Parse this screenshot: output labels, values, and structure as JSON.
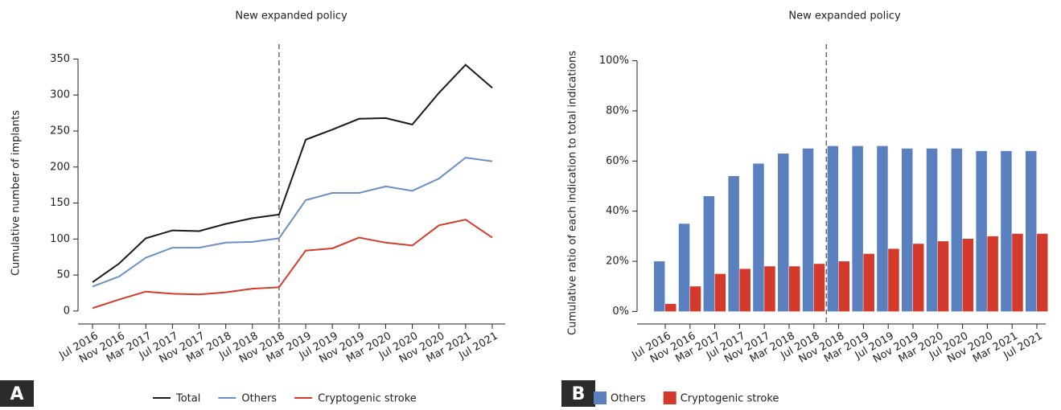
{
  "chart_data": [
    {
      "type": "line",
      "title": "New expanded policy",
      "y_label": "Cumulative number of implants",
      "panel_label": "A",
      "categories": [
        "Jul 2016",
        "Nov 2016",
        "Mar 2017",
        "Jul 2017",
        "Nov 2017",
        "Mar 2018",
        "Jul 2018",
        "Nov 2018",
        "Mar 2019",
        "Jul 2019",
        "Nov 2019",
        "Mar 2020",
        "Jul 2020",
        "Nov 2020",
        "Mar 2021",
        "Jul 2021"
      ],
      "series": [
        {
          "name": "Total",
          "color": "#1a1a1a",
          "values": [
            40,
            66,
            101,
            112,
            111,
            121,
            129,
            134,
            238,
            252,
            267,
            268,
            259,
            303,
            342,
            310
          ]
        },
        {
          "name": "Others",
          "color": "#6a8fc7",
          "values": [
            34,
            48,
            74,
            88,
            88,
            95,
            96,
            101,
            154,
            164,
            164,
            173,
            167,
            184,
            213,
            208
          ]
        },
        {
          "name": "Cryptogenic stroke",
          "color": "#d63a2a",
          "values": [
            4,
            16,
            27,
            24,
            23,
            26,
            31,
            33,
            84,
            87,
            102,
            95,
            91,
            119,
            127,
            102
          ]
        }
      ],
      "ylim": [
        -18,
        365
      ],
      "yticks": [
        0,
        50,
        100,
        150,
        200,
        250,
        300,
        350
      ],
      "vline": 7,
      "legend": "bottom"
    },
    {
      "type": "bar",
      "title": "New expanded policy",
      "y_label": "Cumulative ratio of each indication to total indications",
      "panel_label": "B",
      "categories": [
        "Jul 2016",
        "Nov 2016",
        "Mar 2017",
        "Jul 2017",
        "Nov 2017",
        "Mar 2018",
        "Jul 2018",
        "Nov 2018",
        "Mar 2019",
        "Jul 2019",
        "Nov 2019",
        "Mar 2020",
        "Jul 2020",
        "Nov 2020",
        "Mar 2021",
        "Jul 2021"
      ],
      "series": [
        {
          "name": "Others",
          "color": "#5b80c0",
          "values": [
            20,
            35,
            46,
            54,
            59,
            63,
            65,
            66,
            66,
            66,
            65,
            65,
            65,
            64,
            64,
            64
          ]
        },
        {
          "name": "Cryptogenic stroke",
          "color": "#d43a2b",
          "values": [
            3,
            10,
            15,
            17,
            18,
            18,
            19,
            20,
            23,
            25,
            27,
            28,
            29,
            30,
            31,
            31
          ]
        }
      ],
      "ylim": [
        -5,
        105
      ],
      "yticks": [
        {
          "value": 0,
          "label": "0%"
        },
        {
          "value": 20,
          "label": "20%"
        },
        {
          "value": 40,
          "label": "40%"
        },
        {
          "value": 60,
          "label": "60%"
        },
        {
          "value": 80,
          "label": "80%"
        },
        {
          "value": 100,
          "label": "100%"
        }
      ],
      "vline": 7,
      "legend": "bottom"
    }
  ]
}
